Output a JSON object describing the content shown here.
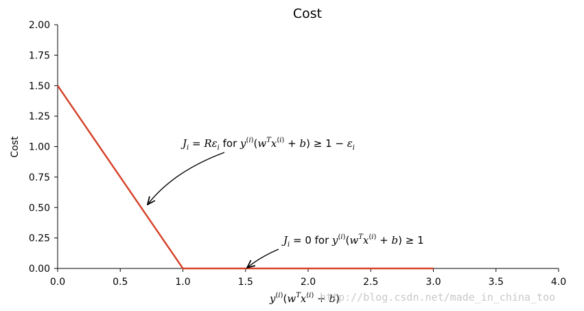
{
  "chart_data": {
    "type": "line",
    "title": "Cost",
    "ylabel": "Cost",
    "xlabel": "y(i)(wTx(i) + b)",
    "xlim": [
      0.0,
      4.0
    ],
    "ylim": [
      0.0,
      2.0
    ],
    "x_ticks": [
      "0.0",
      "0.5",
      "1.0",
      "1.5",
      "2.0",
      "2.5",
      "3.0",
      "3.5",
      "4.0"
    ],
    "y_ticks": [
      "0.00",
      "0.25",
      "0.50",
      "0.75",
      "1.00",
      "1.25",
      "1.50",
      "1.75",
      "2.00"
    ],
    "grid": false,
    "series": [
      {
        "color": "#d6432a",
        "points": [
          [
            0.0,
            1.5
          ],
          [
            1.0,
            0.0
          ],
          [
            3.0,
            0.0
          ]
        ]
      }
    ],
    "annotations": [
      {
        "text": "Ji = Rεi for y(i)(wTx(i) + b) ≥ 1 − εi",
        "points_to": [
          0.7,
          0.5
        ]
      },
      {
        "text": "Ji = 0 for y(i)(wTx(i) + b) ≥ 1",
        "points_to": [
          1.5,
          0.0
        ]
      }
    ]
  },
  "watermark": "http://blog.csdn.net/made_in_china_too"
}
